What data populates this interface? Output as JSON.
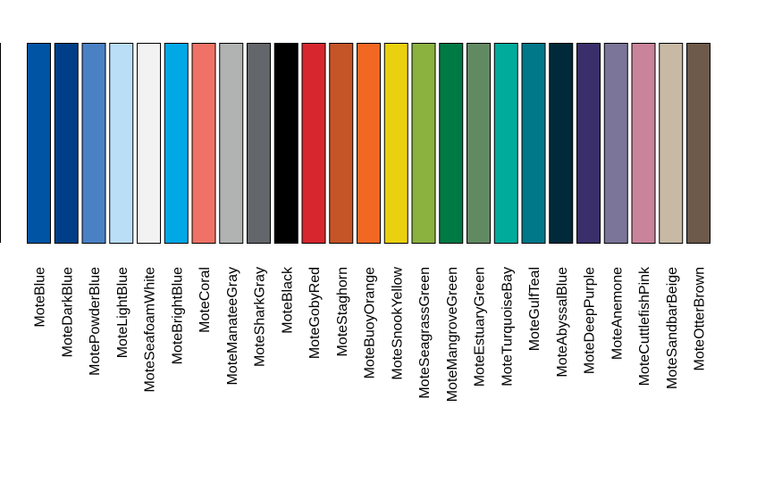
{
  "chart_data": {
    "type": "bar",
    "title": "",
    "xlabel": "",
    "ylabel": "",
    "grid": false,
    "legend": "none",
    "ylim": [
      0,
      1
    ],
    "categories": [
      "MoteBlue",
      "MoteDarkBlue",
      "MotePowderBlue",
      "MoteLightBlue",
      "MoteSeafoamWhite",
      "MoteBrightBlue",
      "MoteCoral",
      "MoteManateeGray",
      "MoteSharkGray",
      "MoteBlack",
      "MoteGobyRed",
      "MoteStaghorn",
      "MoteBuoyOrange",
      "MoteSnookYellow",
      "MoteSeagrassGreen",
      "MoteMangroveGreen",
      "MoteEstuaryGreen",
      "MoteTurquoiseBay",
      "MoteGulfTeal",
      "MoteAbyssalBlue",
      "MoteDeepPurple",
      "MoteAnemone",
      "MoteCuttlefishPink",
      "MoteSandbarBeige",
      "MoteOtterBrown"
    ],
    "values": [
      1,
      1,
      1,
      1,
      1,
      1,
      1,
      1,
      1,
      1,
      1,
      1,
      1,
      1,
      1,
      1,
      1,
      1,
      1,
      1,
      1,
      1,
      1,
      1,
      1
    ],
    "colors": [
      "#0054A4",
      "#003F87",
      "#4A81C4",
      "#BADEF6",
      "#F2F2F2",
      "#00A8E6",
      "#F07266",
      "#B1B3B3",
      "#63666A",
      "#000000",
      "#D7262E",
      "#C55527",
      "#F26722",
      "#EAD10F",
      "#8BB23F",
      "#007A45",
      "#628A62",
      "#00AB9B",
      "#00788A",
      "#002A3A",
      "#3A2F6B",
      "#7A7599",
      "#C9839B",
      "#C7B9A4",
      "#6E5A4A"
    ]
  }
}
